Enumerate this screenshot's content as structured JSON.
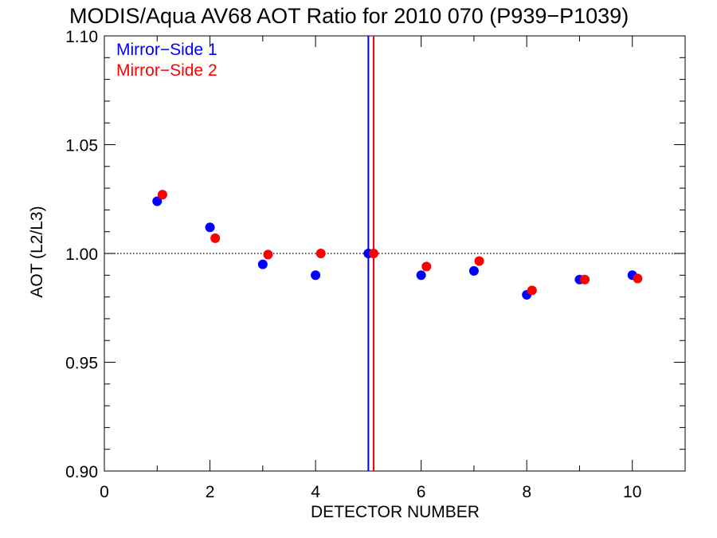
{
  "chart_data": {
    "type": "scatter",
    "title": "MODIS/Aqua AV68 AOT Ratio for 2010 070 (P939−P1039)",
    "xlabel": "DETECTOR NUMBER",
    "ylabel": "AOT (L2/L3)",
    "xlim": [
      0,
      11
    ],
    "ylim": [
      0.9,
      1.1
    ],
    "xticks": [
      0,
      2,
      4,
      6,
      8,
      10
    ],
    "xtick_labels": [
      "0",
      "2",
      "4",
      "6",
      "8",
      "10"
    ],
    "yticks": [
      0.9,
      0.95,
      1.0,
      1.05,
      1.1
    ],
    "ytick_labels": [
      "0.90",
      "0.95",
      "1.00",
      "1.05",
      "1.10"
    ],
    "reference_line_y": 1.0,
    "vertical_lines": [
      {
        "x": 5.0,
        "color": "#0000ff"
      },
      {
        "x": 5.1,
        "color": "#ff0000"
      }
    ],
    "legend_position": "top-left",
    "grid": false,
    "series": [
      {
        "name": "Mirror−Side 1",
        "color": "#0000ff",
        "x": [
          1,
          2,
          3,
          4,
          5,
          6,
          7,
          8,
          9,
          10
        ],
        "y": [
          1.024,
          1.012,
          0.995,
          0.99,
          1.0,
          0.99,
          0.992,
          0.981,
          0.988,
          0.99
        ]
      },
      {
        "name": "Mirror−Side 2",
        "color": "#ff0000",
        "x": [
          1.1,
          2.1,
          3.1,
          4.1,
          5.1,
          6.1,
          7.1,
          8.1,
          9.1,
          10.1
        ],
        "y": [
          1.027,
          1.007,
          0.9995,
          1.0,
          1.0,
          0.994,
          0.9965,
          0.983,
          0.988,
          0.9885
        ]
      }
    ]
  }
}
